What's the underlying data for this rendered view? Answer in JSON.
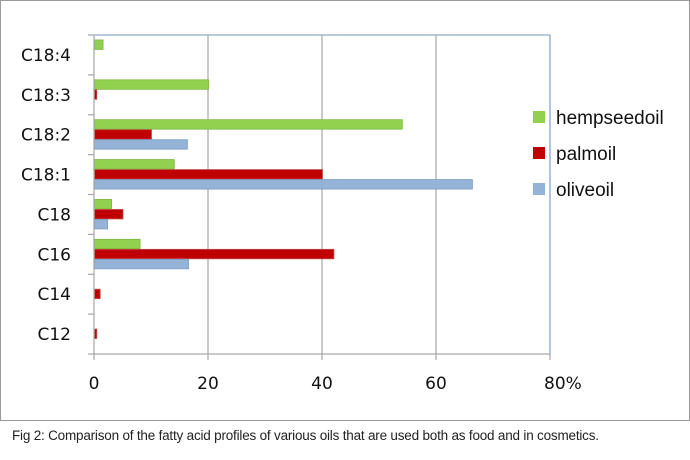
{
  "chart_data": {
    "type": "bar",
    "orientation": "horizontal",
    "title": "",
    "xlabel": "",
    "ylabel": "",
    "xlim": [
      0,
      80
    ],
    "x_ticks": [
      0,
      20,
      40,
      60,
      80
    ],
    "x_tick_labels": [
      "0",
      "20",
      "40",
      "60",
      "80%"
    ],
    "grid": true,
    "legend_position": "right",
    "categories": [
      "C18:4",
      "C18:3",
      "C18:2",
      "C18:1",
      "C18",
      "C16",
      "C14",
      "C12"
    ],
    "series": [
      {
        "name": "hempseedoil",
        "color": "#92d050",
        "values": [
          1.5,
          20,
          54,
          14,
          3,
          8,
          0,
          0
        ]
      },
      {
        "name": "palmoil",
        "color": "#c00000",
        "values": [
          0,
          0.4,
          10,
          40,
          5,
          42,
          1,
          0.4
        ]
      },
      {
        "name": "oliveoil",
        "color": "#95b3d7",
        "values": [
          0,
          0,
          16.3,
          66.3,
          2.3,
          16.5,
          0,
          0
        ]
      }
    ]
  },
  "caption": "Fig 2: Comparison of the fatty acid profiles of various oils that are used both as food and in cosmetics."
}
